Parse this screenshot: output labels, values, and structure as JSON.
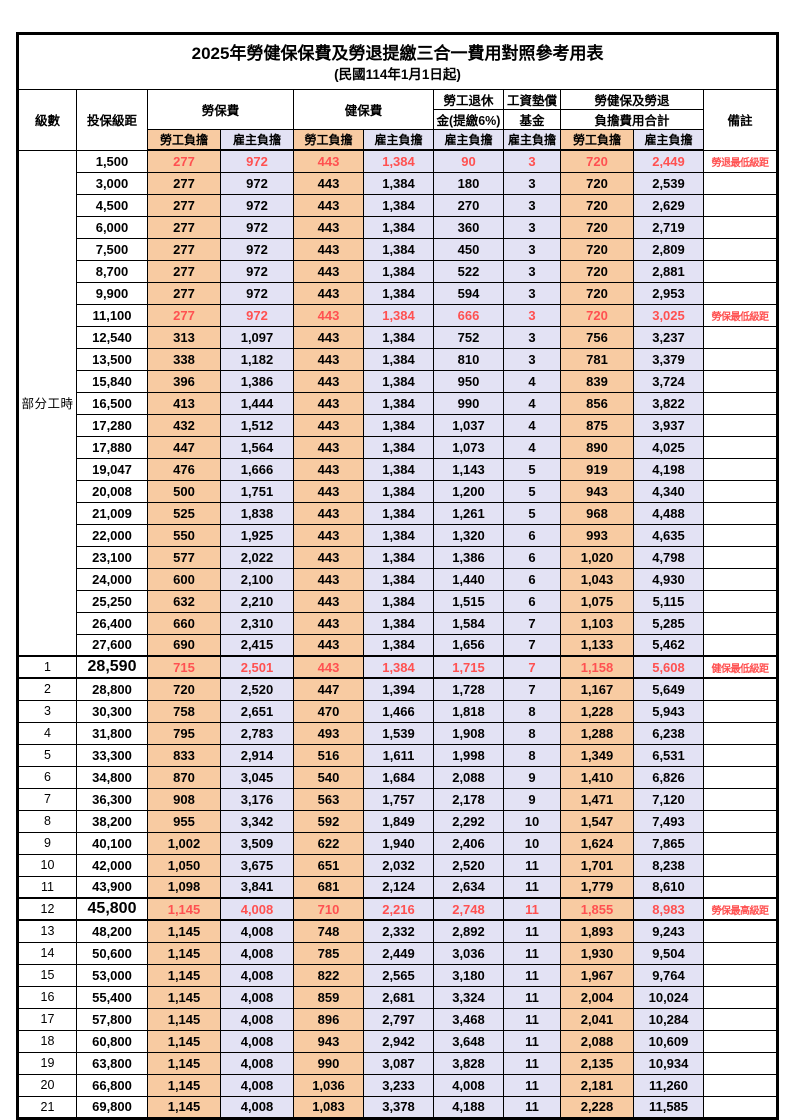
{
  "title": "2025年勞健保保費及勞退提繳三合一費用對照參考用表",
  "subtitle": "(民國114年1月1日起)",
  "header": {
    "level": "級數",
    "salary": "投保級距",
    "labor_group": "勞保費",
    "health_group": "健保費",
    "pension_line1": "勞工退休",
    "pension_line2": "金(提繳6%)",
    "wage_fund_line1": "工資墊償",
    "wage_fund_line2": "基金",
    "total_line1": "勞健保及勞退",
    "total_line2": "負擔費用合計",
    "remark": "備註",
    "employee": "勞工負擔",
    "employer": "雇主負擔"
  },
  "group_label": "部分工時",
  "colors": {
    "employee_bg": "#F8CBA2",
    "employer_bg": "#E3E2F4",
    "highlight_red": "#FF5151",
    "border": "#000000"
  },
  "col_types": [
    "emp",
    "er",
    "emp",
    "er",
    "er",
    "er",
    "emp",
    "er"
  ],
  "rows": [
    {
      "level": "",
      "salary": "1,500",
      "values": [
        "277",
        "972",
        "443",
        "1,384",
        "90",
        "3",
        "720",
        "2,449"
      ],
      "remark": "勞退最低級距",
      "red": true,
      "emph": false
    },
    {
      "level": "",
      "salary": "3,000",
      "values": [
        "277",
        "972",
        "443",
        "1,384",
        "180",
        "3",
        "720",
        "2,539"
      ],
      "remark": "",
      "red": false,
      "emph": false
    },
    {
      "level": "",
      "salary": "4,500",
      "values": [
        "277",
        "972",
        "443",
        "1,384",
        "270",
        "3",
        "720",
        "2,629"
      ],
      "remark": "",
      "red": false,
      "emph": false
    },
    {
      "level": "",
      "salary": "6,000",
      "values": [
        "277",
        "972",
        "443",
        "1,384",
        "360",
        "3",
        "720",
        "2,719"
      ],
      "remark": "",
      "red": false,
      "emph": false
    },
    {
      "level": "",
      "salary": "7,500",
      "values": [
        "277",
        "972",
        "443",
        "1,384",
        "450",
        "3",
        "720",
        "2,809"
      ],
      "remark": "",
      "red": false,
      "emph": false
    },
    {
      "level": "",
      "salary": "8,700",
      "values": [
        "277",
        "972",
        "443",
        "1,384",
        "522",
        "3",
        "720",
        "2,881"
      ],
      "remark": "",
      "red": false,
      "emph": false
    },
    {
      "level": "",
      "salary": "9,900",
      "values": [
        "277",
        "972",
        "443",
        "1,384",
        "594",
        "3",
        "720",
        "2,953"
      ],
      "remark": "",
      "red": false,
      "emph": false
    },
    {
      "level": "",
      "salary": "11,100",
      "values": [
        "277",
        "972",
        "443",
        "1,384",
        "666",
        "3",
        "720",
        "3,025"
      ],
      "remark": "勞保最低級距",
      "red": true,
      "emph": false
    },
    {
      "level": "",
      "salary": "12,540",
      "values": [
        "313",
        "1,097",
        "443",
        "1,384",
        "752",
        "3",
        "756",
        "3,237"
      ],
      "remark": "",
      "red": false,
      "emph": false
    },
    {
      "level": "",
      "salary": "13,500",
      "values": [
        "338",
        "1,182",
        "443",
        "1,384",
        "810",
        "3",
        "781",
        "3,379"
      ],
      "remark": "",
      "red": false,
      "emph": false
    },
    {
      "level": "",
      "salary": "15,840",
      "values": [
        "396",
        "1,386",
        "443",
        "1,384",
        "950",
        "4",
        "839",
        "3,724"
      ],
      "remark": "",
      "red": false,
      "emph": false
    },
    {
      "level": "",
      "salary": "16,500",
      "values": [
        "413",
        "1,444",
        "443",
        "1,384",
        "990",
        "4",
        "856",
        "3,822"
      ],
      "remark": "",
      "red": false,
      "emph": false
    },
    {
      "level": "",
      "salary": "17,280",
      "values": [
        "432",
        "1,512",
        "443",
        "1,384",
        "1,037",
        "4",
        "875",
        "3,937"
      ],
      "remark": "",
      "red": false,
      "emph": false
    },
    {
      "level": "",
      "salary": "17,880",
      "values": [
        "447",
        "1,564",
        "443",
        "1,384",
        "1,073",
        "4",
        "890",
        "4,025"
      ],
      "remark": "",
      "red": false,
      "emph": false
    },
    {
      "level": "",
      "salary": "19,047",
      "values": [
        "476",
        "1,666",
        "443",
        "1,384",
        "1,143",
        "5",
        "919",
        "4,198"
      ],
      "remark": "",
      "red": false,
      "emph": false
    },
    {
      "level": "",
      "salary": "20,008",
      "values": [
        "500",
        "1,751",
        "443",
        "1,384",
        "1,200",
        "5",
        "943",
        "4,340"
      ],
      "remark": "",
      "red": false,
      "emph": false
    },
    {
      "level": "",
      "salary": "21,009",
      "values": [
        "525",
        "1,838",
        "443",
        "1,384",
        "1,261",
        "5",
        "968",
        "4,488"
      ],
      "remark": "",
      "red": false,
      "emph": false
    },
    {
      "level": "",
      "salary": "22,000",
      "values": [
        "550",
        "1,925",
        "443",
        "1,384",
        "1,320",
        "6",
        "993",
        "4,635"
      ],
      "remark": "",
      "red": false,
      "emph": false
    },
    {
      "level": "",
      "salary": "23,100",
      "values": [
        "577",
        "2,022",
        "443",
        "1,384",
        "1,386",
        "6",
        "1,020",
        "4,798"
      ],
      "remark": "",
      "red": false,
      "emph": false
    },
    {
      "level": "",
      "salary": "24,000",
      "values": [
        "600",
        "2,100",
        "443",
        "1,384",
        "1,440",
        "6",
        "1,043",
        "4,930"
      ],
      "remark": "",
      "red": false,
      "emph": false
    },
    {
      "level": "",
      "salary": "25,250",
      "values": [
        "632",
        "2,210",
        "443",
        "1,384",
        "1,515",
        "6",
        "1,075",
        "5,115"
      ],
      "remark": "",
      "red": false,
      "emph": false
    },
    {
      "level": "",
      "salary": "26,400",
      "values": [
        "660",
        "2,310",
        "443",
        "1,384",
        "1,584",
        "7",
        "1,103",
        "5,285"
      ],
      "remark": "",
      "red": false,
      "emph": false
    },
    {
      "level": "",
      "salary": "27,600",
      "values": [
        "690",
        "2,415",
        "443",
        "1,384",
        "1,656",
        "7",
        "1,133",
        "5,462"
      ],
      "remark": "",
      "red": false,
      "emph": false
    },
    {
      "level": "1",
      "salary": "28,590",
      "values": [
        "715",
        "2,501",
        "443",
        "1,384",
        "1,715",
        "7",
        "1,158",
        "5,608"
      ],
      "remark": "健保最低級距",
      "red": true,
      "emph": true
    },
    {
      "level": "2",
      "salary": "28,800",
      "values": [
        "720",
        "2,520",
        "447",
        "1,394",
        "1,728",
        "7",
        "1,167",
        "5,649"
      ],
      "remark": "",
      "red": false,
      "emph": false
    },
    {
      "level": "3",
      "salary": "30,300",
      "values": [
        "758",
        "2,651",
        "470",
        "1,466",
        "1,818",
        "8",
        "1,228",
        "5,943"
      ],
      "remark": "",
      "red": false,
      "emph": false
    },
    {
      "level": "4",
      "salary": "31,800",
      "values": [
        "795",
        "2,783",
        "493",
        "1,539",
        "1,908",
        "8",
        "1,288",
        "6,238"
      ],
      "remark": "",
      "red": false,
      "emph": false
    },
    {
      "level": "5",
      "salary": "33,300",
      "values": [
        "833",
        "2,914",
        "516",
        "1,611",
        "1,998",
        "8",
        "1,349",
        "6,531"
      ],
      "remark": "",
      "red": false,
      "emph": false
    },
    {
      "level": "6",
      "salary": "34,800",
      "values": [
        "870",
        "3,045",
        "540",
        "1,684",
        "2,088",
        "9",
        "1,410",
        "6,826"
      ],
      "remark": "",
      "red": false,
      "emph": false
    },
    {
      "level": "7",
      "salary": "36,300",
      "values": [
        "908",
        "3,176",
        "563",
        "1,757",
        "2,178",
        "9",
        "1,471",
        "7,120"
      ],
      "remark": "",
      "red": false,
      "emph": false
    },
    {
      "level": "8",
      "salary": "38,200",
      "values": [
        "955",
        "3,342",
        "592",
        "1,849",
        "2,292",
        "10",
        "1,547",
        "7,493"
      ],
      "remark": "",
      "red": false,
      "emph": false
    },
    {
      "level": "9",
      "salary": "40,100",
      "values": [
        "1,002",
        "3,509",
        "622",
        "1,940",
        "2,406",
        "10",
        "1,624",
        "7,865"
      ],
      "remark": "",
      "red": false,
      "emph": false
    },
    {
      "level": "10",
      "salary": "42,000",
      "values": [
        "1,050",
        "3,675",
        "651",
        "2,032",
        "2,520",
        "11",
        "1,701",
        "8,238"
      ],
      "remark": "",
      "red": false,
      "emph": false
    },
    {
      "level": "11",
      "salary": "43,900",
      "values": [
        "1,098",
        "3,841",
        "681",
        "2,124",
        "2,634",
        "11",
        "1,779",
        "8,610"
      ],
      "remark": "",
      "red": false,
      "emph": false
    },
    {
      "level": "12",
      "salary": "45,800",
      "values": [
        "1,145",
        "4,008",
        "710",
        "2,216",
        "2,748",
        "11",
        "1,855",
        "8,983"
      ],
      "remark": "勞保最高級距",
      "red": true,
      "emph": true
    },
    {
      "level": "13",
      "salary": "48,200",
      "values": [
        "1,145",
        "4,008",
        "748",
        "2,332",
        "2,892",
        "11",
        "1,893",
        "9,243"
      ],
      "remark": "",
      "red": false,
      "emph": false
    },
    {
      "level": "14",
      "salary": "50,600",
      "values": [
        "1,145",
        "4,008",
        "785",
        "2,449",
        "3,036",
        "11",
        "1,930",
        "9,504"
      ],
      "remark": "",
      "red": false,
      "emph": false
    },
    {
      "level": "15",
      "salary": "53,000",
      "values": [
        "1,145",
        "4,008",
        "822",
        "2,565",
        "3,180",
        "11",
        "1,967",
        "9,764"
      ],
      "remark": "",
      "red": false,
      "emph": false
    },
    {
      "level": "16",
      "salary": "55,400",
      "values": [
        "1,145",
        "4,008",
        "859",
        "2,681",
        "3,324",
        "11",
        "2,004",
        "10,024"
      ],
      "remark": "",
      "red": false,
      "emph": false
    },
    {
      "level": "17",
      "salary": "57,800",
      "values": [
        "1,145",
        "4,008",
        "896",
        "2,797",
        "3,468",
        "11",
        "2,041",
        "10,284"
      ],
      "remark": "",
      "red": false,
      "emph": false
    },
    {
      "level": "18",
      "salary": "60,800",
      "values": [
        "1,145",
        "4,008",
        "943",
        "2,942",
        "3,648",
        "11",
        "2,088",
        "10,609"
      ],
      "remark": "",
      "red": false,
      "emph": false
    },
    {
      "level": "19",
      "salary": "63,800",
      "values": [
        "1,145",
        "4,008",
        "990",
        "3,087",
        "3,828",
        "11",
        "2,135",
        "10,934"
      ],
      "remark": "",
      "red": false,
      "emph": false
    },
    {
      "level": "20",
      "salary": "66,800",
      "values": [
        "1,145",
        "4,008",
        "1,036",
        "3,233",
        "4,008",
        "11",
        "2,181",
        "11,260"
      ],
      "remark": "",
      "red": false,
      "emph": false
    },
    {
      "level": "21",
      "salary": "69,800",
      "values": [
        "1,145",
        "4,008",
        "1,083",
        "3,378",
        "4,188",
        "11",
        "2,228",
        "11,585"
      ],
      "remark": "",
      "red": false,
      "emph": false
    }
  ]
}
